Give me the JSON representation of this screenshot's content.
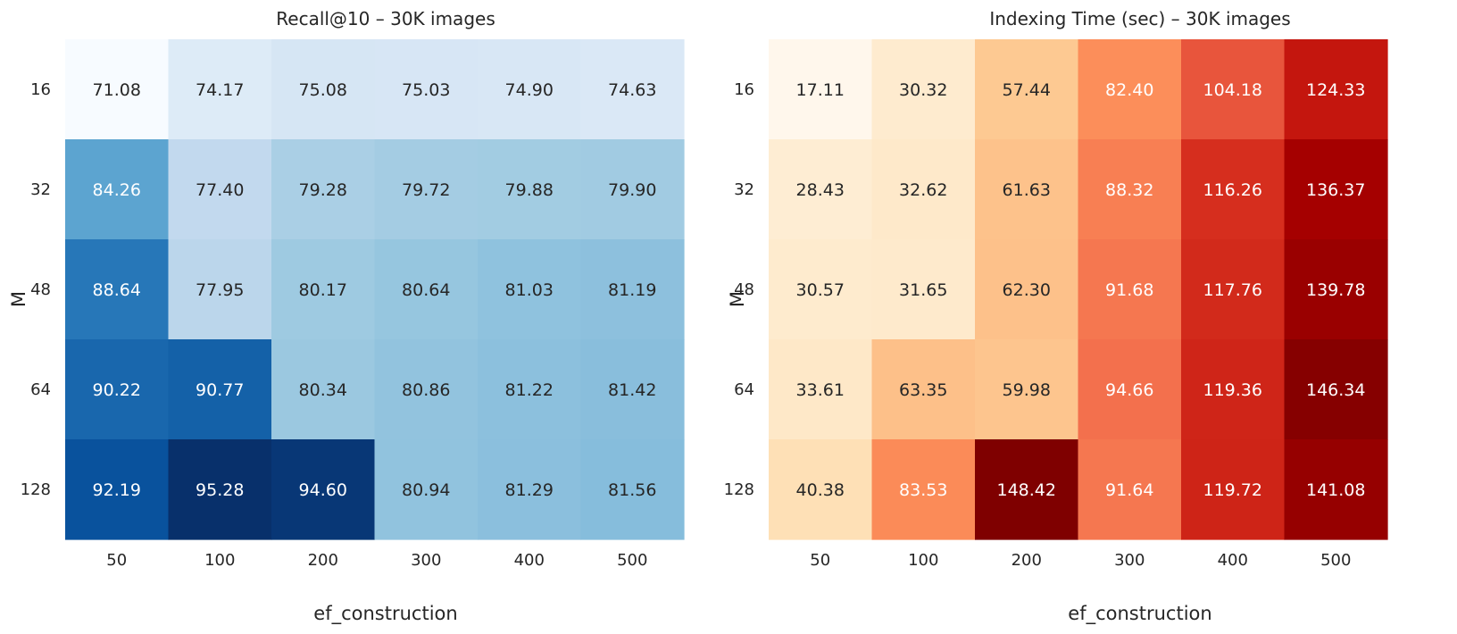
{
  "chart_data": [
    {
      "type": "heatmap",
      "title": "Recall@10 – 30K images",
      "xlabel": "ef_construction",
      "ylabel": "M",
      "x": [
        "50",
        "100",
        "200",
        "300",
        "400",
        "500"
      ],
      "y": [
        "16",
        "32",
        "48",
        "64",
        "128"
      ],
      "colormap": "Blues",
      "values": [
        [
          71.08,
          74.17,
          75.08,
          75.03,
          74.9,
          74.63
        ],
        [
          84.26,
          77.4,
          79.28,
          79.72,
          79.88,
          79.9
        ],
        [
          88.64,
          77.95,
          80.17,
          80.64,
          81.03,
          81.19
        ],
        [
          90.22,
          90.77,
          80.34,
          80.86,
          81.22,
          81.42
        ],
        [
          92.19,
          95.28,
          94.6,
          80.94,
          81.29,
          81.56
        ]
      ]
    },
    {
      "type": "heatmap",
      "title": "Indexing Time (sec) – 30K images",
      "xlabel": "ef_construction",
      "ylabel": "M",
      "x": [
        "50",
        "100",
        "200",
        "300",
        "400",
        "500"
      ],
      "y": [
        "16",
        "32",
        "48",
        "64",
        "128"
      ],
      "colormap": "OrRd",
      "values": [
        [
          17.11,
          30.32,
          57.44,
          82.4,
          104.18,
          124.33
        ],
        [
          28.43,
          32.62,
          61.63,
          88.32,
          116.26,
          136.37
        ],
        [
          30.57,
          31.65,
          62.3,
          91.68,
          117.76,
          139.78
        ],
        [
          33.61,
          63.35,
          59.98,
          94.66,
          119.36,
          146.34
        ],
        [
          40.38,
          83.53,
          148.42,
          91.64,
          119.72,
          141.08
        ]
      ]
    }
  ]
}
